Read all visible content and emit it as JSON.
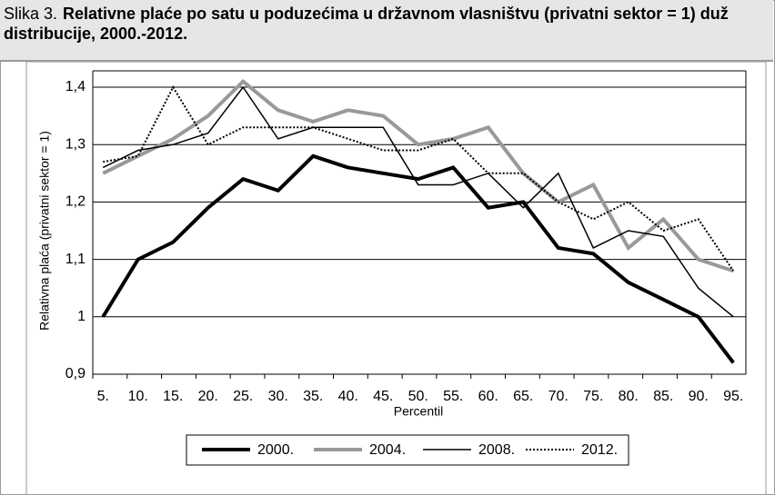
{
  "chart_data": {
    "type": "line",
    "figure_label": "Slika 3.",
    "title": "Relativne plaće po satu u poduzećima u državnom vlasništvu (privatni sektor = 1) duž distribucije, 2000.-2012.",
    "y_label": "Relativna plaća (privatni sektor = 1)",
    "x_label": "Percentil",
    "categories": [
      "5.",
      "10.",
      "15.",
      "20.",
      "25.",
      "30.",
      "35.",
      "40.",
      "45.",
      "50.",
      "55.",
      "60.",
      "65.",
      "70.",
      "75.",
      "80.",
      "85.",
      "90.",
      "95."
    ],
    "ylim": [
      0.9,
      1.4
    ],
    "yticks": [
      {
        "value": 0.9,
        "label": "0,9"
      },
      1,
      {
        "value": 1.1,
        "label": "1,1"
      },
      {
        "value": 1.2,
        "label": "1,2"
      },
      {
        "value": 1.3,
        "label": "1,3"
      },
      {
        "value": 1.4,
        "label": "1,4"
      }
    ],
    "grid": true,
    "legend": "bottom",
    "series": [
      {
        "name": "2000.",
        "color": "#000000",
        "width": 4,
        "dash": "solid",
        "values": [
          1.0,
          1.1,
          1.13,
          1.19,
          1.24,
          1.22,
          1.28,
          1.26,
          1.25,
          1.24,
          1.26,
          1.19,
          1.2,
          1.12,
          1.11,
          1.06,
          1.03,
          1.0,
          0.92
        ]
      },
      {
        "name": "2004.",
        "color": "#999999",
        "width": 4,
        "dash": "solid",
        "values": [
          1.25,
          1.28,
          1.31,
          1.35,
          1.41,
          1.36,
          1.34,
          1.36,
          1.35,
          1.3,
          1.31,
          1.33,
          1.25,
          1.2,
          1.23,
          1.12,
          1.17,
          1.1,
          1.08
        ]
      },
      {
        "name": "2008.",
        "color": "#000000",
        "width": 1.5,
        "dash": "solid",
        "values": [
          1.26,
          1.29,
          1.3,
          1.32,
          1.4,
          1.31,
          1.33,
          1.33,
          1.33,
          1.23,
          1.23,
          1.25,
          1.19,
          1.25,
          1.12,
          1.15,
          1.14,
          1.05,
          1.0
        ]
      },
      {
        "name": "2012.",
        "color": "#000000",
        "width": 2,
        "dash": "dotted",
        "values": [
          1.27,
          1.28,
          1.4,
          1.3,
          1.33,
          1.33,
          1.33,
          1.31,
          1.29,
          1.29,
          1.31,
          1.25,
          1.25,
          1.2,
          1.17,
          1.2,
          1.15,
          1.17,
          1.08
        ]
      }
    ]
  }
}
